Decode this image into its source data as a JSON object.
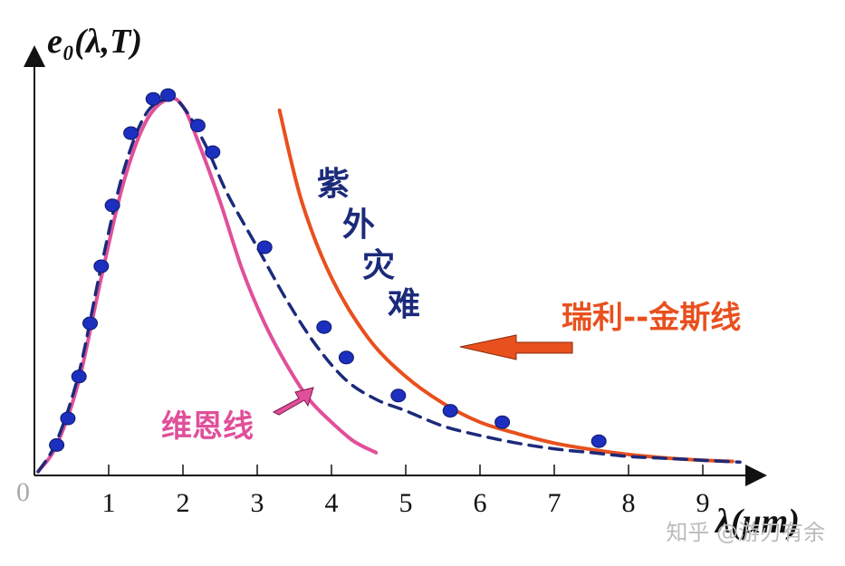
{
  "chart_data": {
    "type": "line",
    "ylabel": "e₀(λ,T)",
    "xlabel": "λ(μm)",
    "origin_label": "0",
    "xlim": [
      0,
      9.5
    ],
    "ylim": [
      0,
      1.0
    ],
    "x_ticks": [
      1,
      2,
      3,
      4,
      5,
      6,
      7,
      8,
      9
    ],
    "series": [
      {
        "name": "维恩线",
        "color": "#e0509a",
        "points": [
          [
            0.05,
            0.01
          ],
          [
            0.3,
            0.08
          ],
          [
            0.6,
            0.25
          ],
          [
            0.9,
            0.52
          ],
          [
            1.2,
            0.77
          ],
          [
            1.5,
            0.93
          ],
          [
            1.8,
            0.99
          ],
          [
            2.0,
            0.97
          ],
          [
            2.2,
            0.88
          ],
          [
            2.5,
            0.72
          ],
          [
            2.8,
            0.54
          ],
          [
            3.1,
            0.4
          ],
          [
            3.4,
            0.29
          ],
          [
            3.7,
            0.2
          ],
          [
            4.0,
            0.14
          ],
          [
            4.3,
            0.09
          ],
          [
            4.6,
            0.06
          ]
        ]
      },
      {
        "name": "瑞利--金斯线",
        "color": "#e8501e",
        "points": [
          [
            3.3,
            0.96
          ],
          [
            3.6,
            0.72
          ],
          [
            4.0,
            0.52
          ],
          [
            4.5,
            0.36
          ],
          [
            5.0,
            0.26
          ],
          [
            5.5,
            0.19
          ],
          [
            6.0,
            0.14
          ],
          [
            6.5,
            0.11
          ],
          [
            7.0,
            0.085
          ],
          [
            7.5,
            0.068
          ],
          [
            8.0,
            0.055
          ],
          [
            8.5,
            0.046
          ],
          [
            9.0,
            0.04
          ],
          [
            9.4,
            0.037
          ]
        ]
      },
      {
        "name": "紫外灾难",
        "color": "#1c2a7a",
        "dashed": true,
        "points": [
          [
            0.05,
            0.01
          ],
          [
            0.3,
            0.09
          ],
          [
            0.6,
            0.27
          ],
          [
            0.9,
            0.55
          ],
          [
            1.2,
            0.8
          ],
          [
            1.5,
            0.95
          ],
          [
            1.8,
            0.99
          ],
          [
            2.0,
            0.97
          ],
          [
            2.3,
            0.87
          ],
          [
            2.6,
            0.74
          ],
          [
            3.0,
            0.6
          ],
          [
            3.4,
            0.46
          ],
          [
            3.8,
            0.34
          ],
          [
            4.2,
            0.25
          ],
          [
            4.6,
            0.2
          ],
          [
            5.0,
            0.17
          ],
          [
            5.5,
            0.13
          ],
          [
            6.0,
            0.105
          ],
          [
            6.5,
            0.085
          ],
          [
            7.0,
            0.07
          ],
          [
            7.5,
            0.06
          ],
          [
            8.0,
            0.05
          ],
          [
            8.5,
            0.045
          ],
          [
            9.0,
            0.04
          ],
          [
            9.5,
            0.035
          ]
        ]
      }
    ],
    "points": [
      [
        0.3,
        0.08
      ],
      [
        0.45,
        0.15
      ],
      [
        0.6,
        0.26
      ],
      [
        0.75,
        0.4
      ],
      [
        0.9,
        0.55
      ],
      [
        1.05,
        0.71
      ],
      [
        1.3,
        0.9
      ],
      [
        1.6,
        0.99
      ],
      [
        1.8,
        1.0
      ],
      [
        2.2,
        0.92
      ],
      [
        2.4,
        0.85
      ],
      [
        3.1,
        0.6
      ],
      [
        3.9,
        0.39
      ],
      [
        4.2,
        0.31
      ],
      [
        4.9,
        0.21
      ],
      [
        5.6,
        0.17
      ],
      [
        6.3,
        0.14
      ],
      [
        7.6,
        0.09
      ]
    ],
    "point_color": "#1d2fbf",
    "annotations": {
      "uv_catastrophe": [
        "紫",
        "外",
        "灾",
        "难"
      ],
      "rayleigh_jeans": "瑞利--金斯线",
      "wien": "维恩线"
    }
  },
  "watermark": "知乎 @游刃有余"
}
